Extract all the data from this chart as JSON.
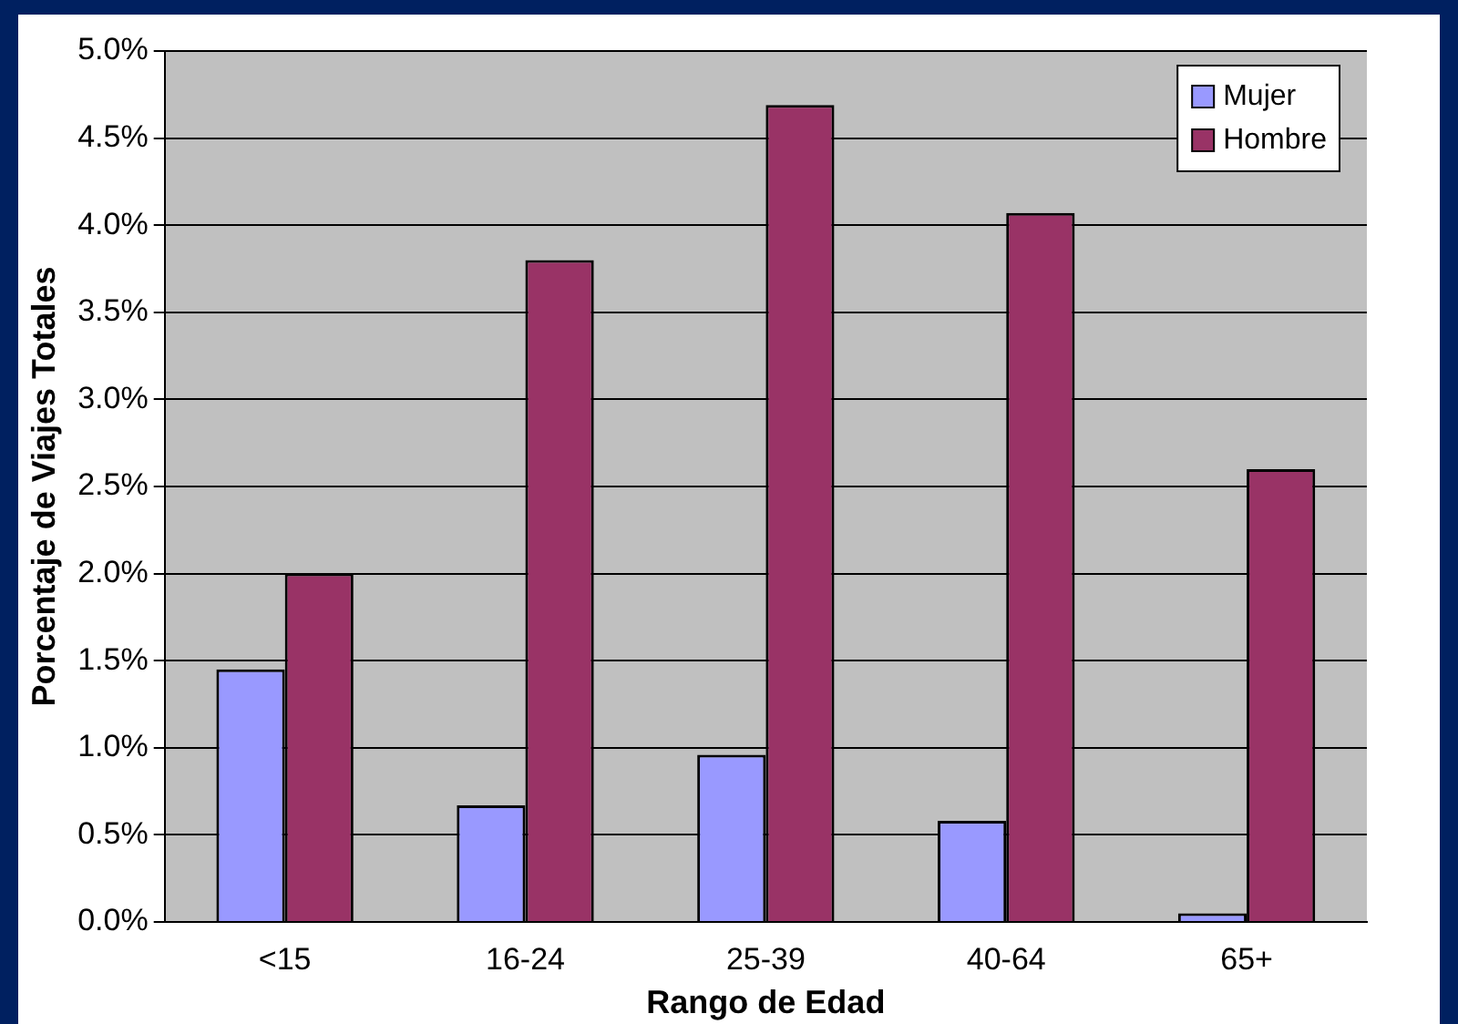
{
  "chart_data": {
    "type": "bar",
    "xlabel": "Rango de Edad",
    "ylabel": "Porcentaje de Viajes Totales",
    "categories": [
      "<15",
      "16-24",
      "25-39",
      "40-64",
      "65+"
    ],
    "series": [
      {
        "name": "Mujer",
        "color": "#9999ff",
        "values": [
          1.45,
          0.67,
          0.96,
          0.58,
          0.05
        ]
      },
      {
        "name": "Hombre",
        "color": "#993366",
        "values": [
          2.0,
          3.8,
          4.69,
          4.07,
          2.6
        ]
      }
    ],
    "ylim": [
      0,
      5
    ],
    "yticks": [
      {
        "value": 0,
        "label": "0.0%"
      },
      {
        "value": 0.5,
        "label": "0.5%"
      },
      {
        "value": 1,
        "label": "1.0%"
      },
      {
        "value": 1.5,
        "label": "1.5%"
      },
      {
        "value": 2,
        "label": "2.0%"
      },
      {
        "value": 2.5,
        "label": "2.5%"
      },
      {
        "value": 3,
        "label": "3.0%"
      },
      {
        "value": 3.5,
        "label": "3.5%"
      },
      {
        "value": 4,
        "label": "4.0%"
      },
      {
        "value": 4.5,
        "label": "4.5%"
      },
      {
        "value": 5,
        "label": "5.0%"
      }
    ],
    "grid": "y",
    "legend": "top right"
  }
}
